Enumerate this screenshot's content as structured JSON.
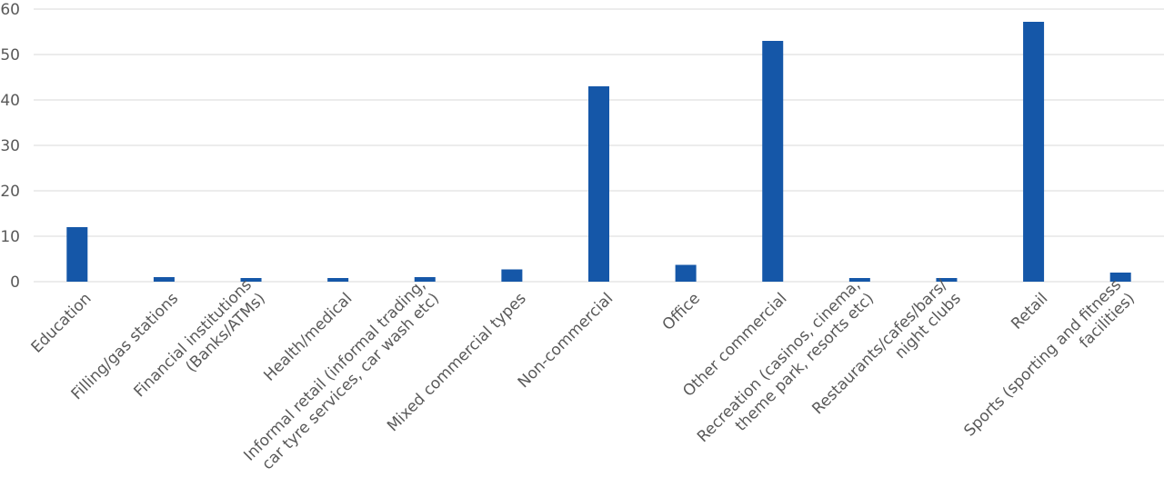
{
  "chart_data": {
    "type": "bar",
    "categories": [
      [
        "Education"
      ],
      [
        "Filling/gas stations"
      ],
      [
        "Financial institutions",
        "(Banks/ATMs)"
      ],
      [
        "Health/medical"
      ],
      [
        "Informal retail (informal trading,",
        "car tyre services, car wash etc)"
      ],
      [
        "Mixed commercial types"
      ],
      [
        "Non-commercial"
      ],
      [
        "Office"
      ],
      [
        "Other commercial"
      ],
      [
        "Recreation (casinos, cinema,",
        "theme park, resorts etc)"
      ],
      [
        "Restaurants/cafes/bars/",
        "night clubs"
      ],
      [
        "Retail"
      ],
      [
        "Sports (sporting and fitness",
        "facilities)"
      ]
    ],
    "values": [
      12,
      1,
      0.8,
      0.8,
      1,
      2.7,
      43,
      3.7,
      53,
      0.8,
      0.8,
      57.2,
      2
    ],
    "ylim": [
      0,
      60
    ],
    "yticks": [
      0,
      10,
      20,
      30,
      40,
      50,
      60
    ],
    "grid": true,
    "bar_color": "#1557A8",
    "xlabel": "",
    "ylabel": "",
    "title": ""
  }
}
